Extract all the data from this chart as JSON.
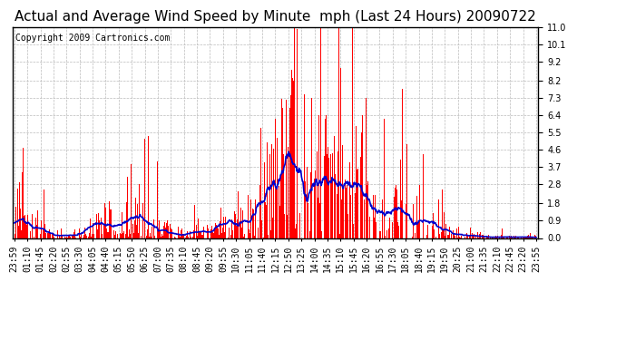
{
  "title": "Actual and Average Wind Speed by Minute  mph (Last 24 Hours) 20090722",
  "copyright": "Copyright 2009 Cartronics.com",
  "yticks": [
    0.0,
    0.9,
    1.8,
    2.8,
    3.7,
    4.6,
    5.5,
    6.4,
    7.3,
    8.2,
    9.2,
    10.1,
    11.0
  ],
  "ylim": [
    0.0,
    11.0
  ],
  "bar_color": "#ff0000",
  "line_color": "#0000cc",
  "bg_color": "#ffffff",
  "grid_color": "#bbbbbb",
  "title_fontsize": 11,
  "copyright_fontsize": 7,
  "tick_fontsize": 7,
  "xtick_labels": [
    "23:59",
    "01:10",
    "01:45",
    "02:20",
    "02:55",
    "03:30",
    "04:05",
    "04:40",
    "05:15",
    "05:50",
    "06:25",
    "07:00",
    "07:35",
    "08:10",
    "08:45",
    "09:20",
    "09:55",
    "10:30",
    "11:05",
    "11:40",
    "12:15",
    "12:50",
    "13:25",
    "14:00",
    "14:35",
    "15:10",
    "15:45",
    "16:20",
    "16:55",
    "17:30",
    "18:05",
    "18:40",
    "19:15",
    "19:50",
    "20:25",
    "21:00",
    "21:35",
    "22:10",
    "22:45",
    "23:20",
    "23:55"
  ]
}
